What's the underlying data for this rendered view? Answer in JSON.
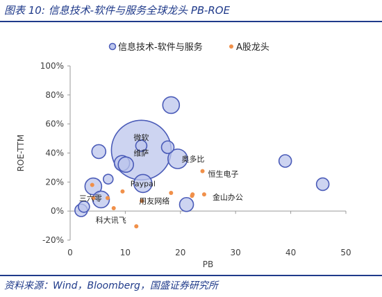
{
  "figure": {
    "title": "图表 10:  信息技术-软件与服务全球龙头 PB-ROE",
    "source": "资料来源：Wind，Bloomberg，国盛证券研究所"
  },
  "colors": {
    "bubble_fill": "#bcc6ec",
    "bubble_stroke": "#4a5bb8",
    "a_share": "#f0904a",
    "accent": "#1f3a8a"
  },
  "chart_data": {
    "type": "scatter",
    "xlabel": "PB",
    "ylabel": "ROE-TTM",
    "xlim": [
      0,
      50
    ],
    "ylim": [
      -20,
      100
    ],
    "x_ticks": [
      "0",
      "10",
      "20",
      "30",
      "40",
      "50"
    ],
    "y_ticks": [
      "-20%",
      "0%",
      "20%",
      "40%",
      "60%",
      "80%",
      "100%"
    ],
    "legend_position": "top",
    "grid": false,
    "series": [
      {
        "name": "信息技术-软件与服务",
        "marker": "bubble",
        "points": [
          {
            "x": 2.0,
            "y": 0.5,
            "size": 9
          },
          {
            "x": 2.5,
            "y": 3,
            "size": 8
          },
          {
            "x": 4.2,
            "y": 17,
            "size": 12
          },
          {
            "x": 5.6,
            "y": 8,
            "size": 12
          },
          {
            "x": 5.2,
            "y": 41,
            "size": 10
          },
          {
            "x": 6.9,
            "y": 22,
            "size": 7
          },
          {
            "x": 9.4,
            "y": 33,
            "size": 11
          },
          {
            "x": 10.1,
            "y": 32,
            "size": 11
          },
          {
            "x": 12.9,
            "y": 42,
            "size": 43,
            "label": "维萨"
          },
          {
            "x": 12.9,
            "y": 45,
            "size": 8,
            "label": "微软"
          },
          {
            "x": 13.2,
            "y": 19,
            "size": 13,
            "label": "Paypal"
          },
          {
            "x": 17.7,
            "y": 44,
            "size": 9
          },
          {
            "x": 18.3,
            "y": 73,
            "size": 12
          },
          {
            "x": 19.5,
            "y": 36,
            "size": 14,
            "label": "奥多比"
          },
          {
            "x": 21.1,
            "y": 4.5,
            "size": 10
          },
          {
            "x": 39.0,
            "y": 34.5,
            "size": 9
          },
          {
            "x": 45.8,
            "y": 18.5,
            "size": 9
          }
        ]
      },
      {
        "name": "A股龙头",
        "marker": "dot",
        "points": [
          {
            "x": 4.0,
            "y": 18
          },
          {
            "x": 4.2,
            "y": 9,
            "label": "三六零"
          },
          {
            "x": 6.8,
            "y": 9
          },
          {
            "x": 7.9,
            "y": 2,
            "label": "科大讯飞"
          },
          {
            "x": 9.5,
            "y": 13.5
          },
          {
            "x": 12.0,
            "y": -10.5
          },
          {
            "x": 13.0,
            "y": 7,
            "label": "用友网络"
          },
          {
            "x": 18.3,
            "y": 12.5
          },
          {
            "x": 22.2,
            "y": 11.5
          },
          {
            "x": 22.1,
            "y": 10.5
          },
          {
            "x": 24.0,
            "y": 27.5,
            "label": "恒生电子"
          },
          {
            "x": 24.3,
            "y": 11.5,
            "label": "金山办公"
          }
        ]
      }
    ]
  }
}
